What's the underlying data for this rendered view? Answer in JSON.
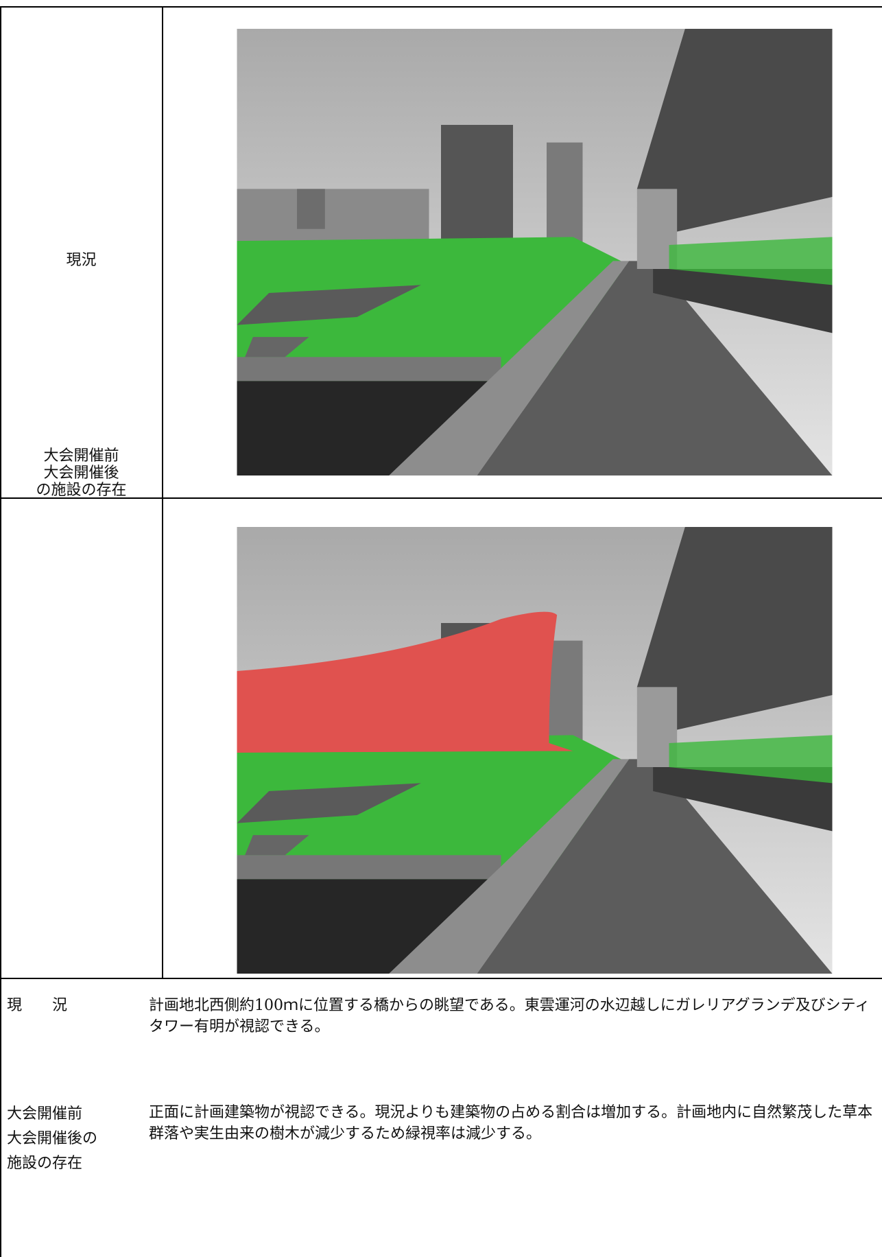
{
  "table": {
    "rows": [
      {
        "label": [
          "現況"
        ]
      },
      {
        "label": [
          "大会開催前",
          "大会開催後",
          "の施設の存在"
        ]
      }
    ]
  },
  "descriptions": [
    {
      "label": [
        "現　　況"
      ],
      "text": "計画地北西側約100ｍに位置する橋からの眺望である。東雲運河の水辺越しにガレリアグランデ及びシティタワー有明が視認できる。"
    },
    {
      "label": [
        "大会開催前",
        "大会開催後の",
        "施設の存在"
      ],
      "text": "正面に計画建築物が視認できる。現況よりも建築物の占める割合は増加する。計画地内に自然繁茂した草本群落や実生由来の樹木が減少するため緑視率は減少する。"
    }
  ]
}
